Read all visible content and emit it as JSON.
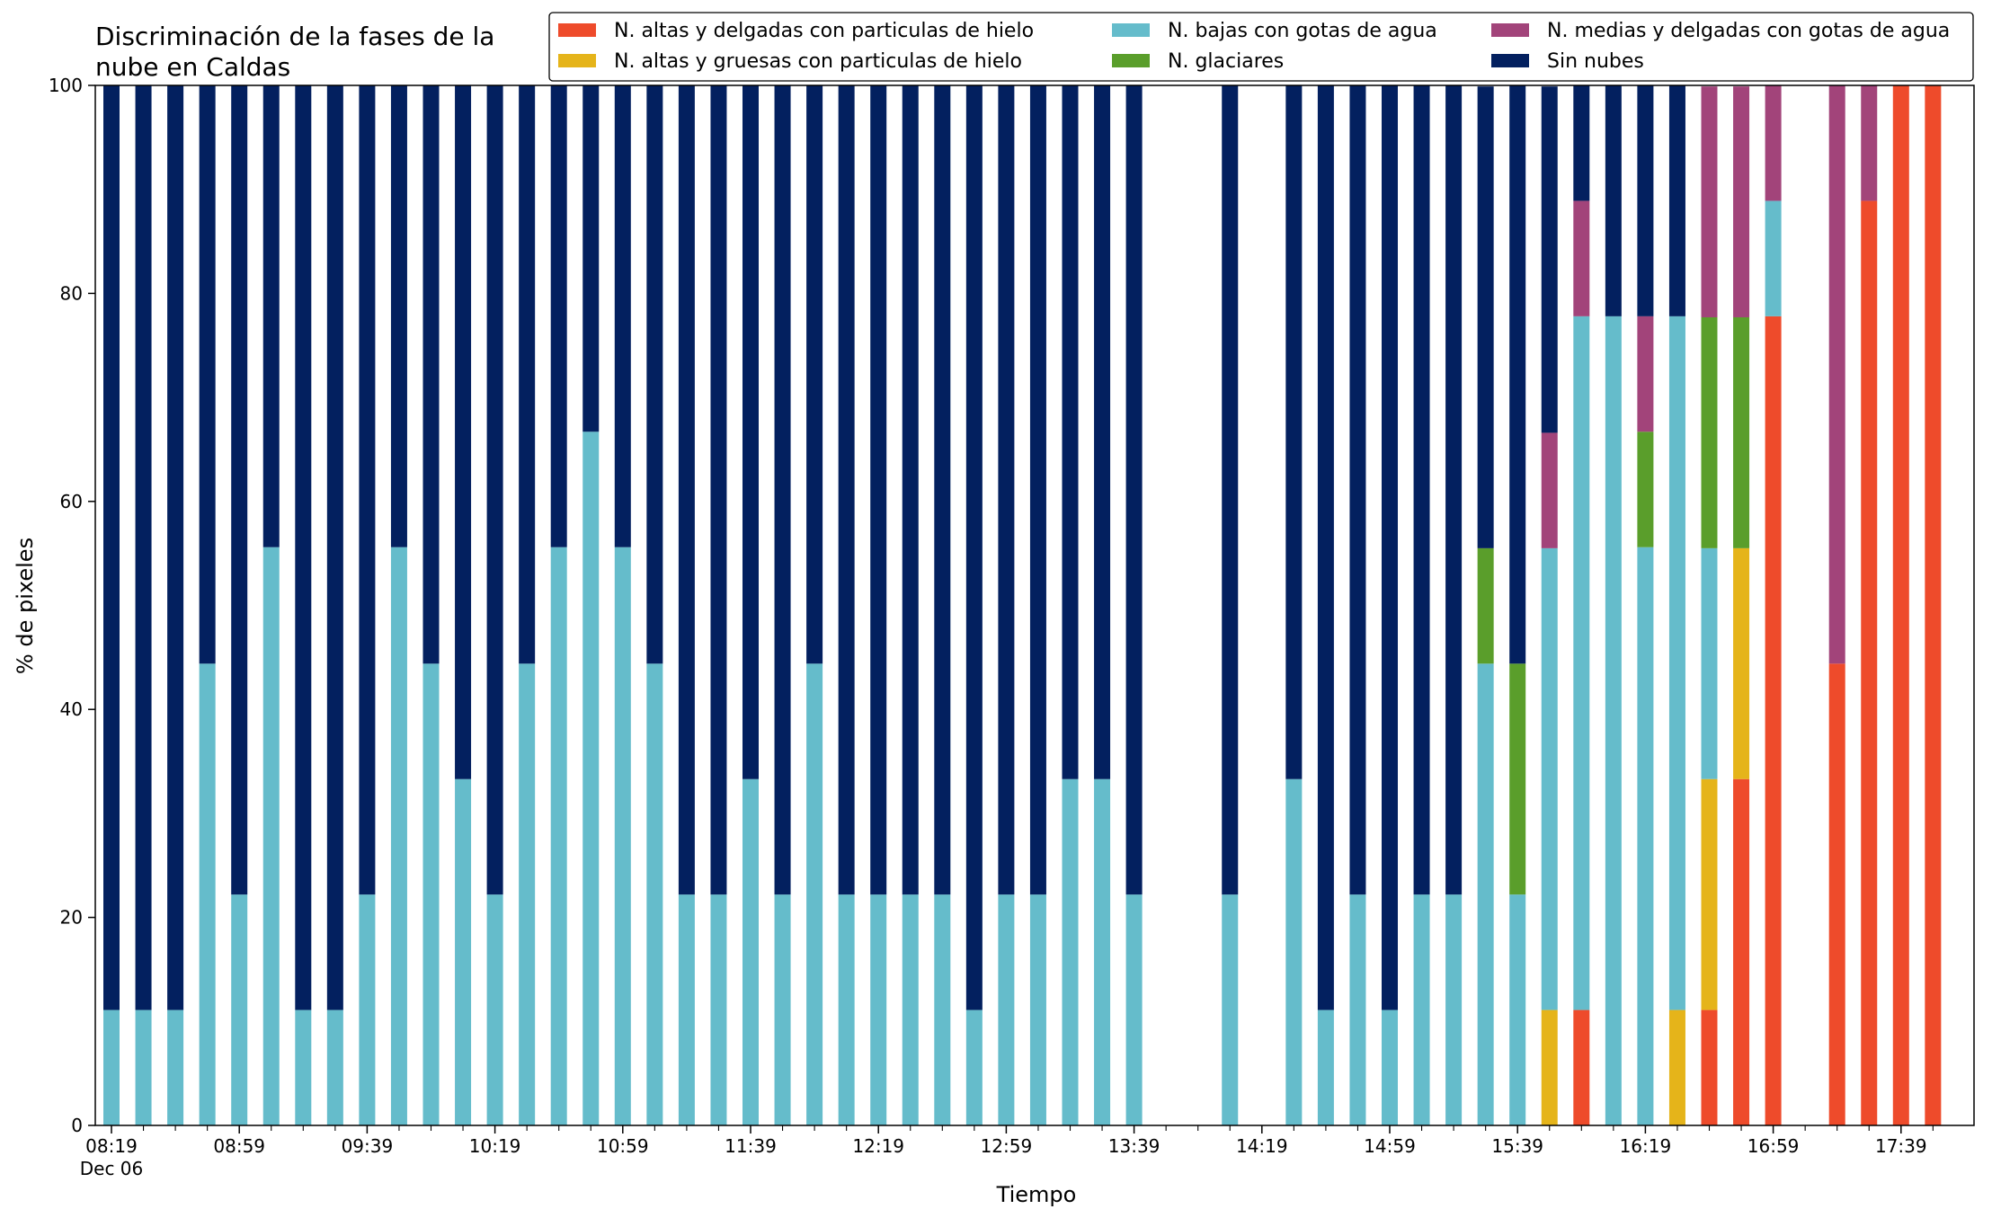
{
  "chart_data": {
    "type": "bar",
    "stacked": true,
    "title": "Discriminación de la fases de la nube en Caldas",
    "title_lines": [
      "Discriminación de la fases de la",
      "nube en Caldas"
    ],
    "xlabel": "Tiempo",
    "ylabel": "% de pixeles",
    "ylim": [
      0,
      100
    ],
    "yticks": [
      0,
      20,
      40,
      60,
      80,
      100
    ],
    "grid": false,
    "legend_position": "top-right",
    "slot_count": 58,
    "x_start": "08:19",
    "x_interval_minutes": 10,
    "xtick_labels": [
      {
        "slot": 0,
        "label": "08:19",
        "sub": "Dec 06"
      },
      {
        "slot": 4,
        "label": "08:59"
      },
      {
        "slot": 8,
        "label": "09:39"
      },
      {
        "slot": 12,
        "label": "10:19"
      },
      {
        "slot": 16,
        "label": "10:59"
      },
      {
        "slot": 20,
        "label": "11:39"
      },
      {
        "slot": 24,
        "label": "12:19"
      },
      {
        "slot": 28,
        "label": "12:59"
      },
      {
        "slot": 32,
        "label": "13:39"
      },
      {
        "slot": 36,
        "label": "14:19"
      },
      {
        "slot": 40,
        "label": "14:59"
      },
      {
        "slot": 44,
        "label": "15:39"
      },
      {
        "slot": 48,
        "label": "16:19"
      },
      {
        "slot": 52,
        "label": "16:59"
      },
      {
        "slot": 56,
        "label": "17:39"
      }
    ],
    "series": [
      {
        "name": "N. altas y delgadas con particulas de hielo",
        "color": "#ee4b2b",
        "values": [
          0,
          0,
          0,
          0,
          0,
          0,
          0,
          0,
          0,
          0,
          0,
          0,
          0,
          0,
          0,
          0,
          0,
          0,
          0,
          0,
          0,
          0,
          0,
          0,
          0,
          0,
          0,
          0,
          0,
          0,
          0,
          0,
          0,
          null,
          null,
          0,
          null,
          0,
          0,
          0,
          0,
          0,
          0,
          0,
          0,
          0,
          11.1,
          0,
          0,
          0,
          11.1,
          33.3,
          77.8,
          null,
          44.4,
          88.9,
          100,
          100
        ]
      },
      {
        "name": "N. altas y gruesas con particulas de hielo",
        "color": "#e5b41a",
        "values": [
          0,
          0,
          0,
          0,
          0,
          0,
          0,
          0,
          0,
          0,
          0,
          0,
          0,
          0,
          0,
          0,
          0,
          0,
          0,
          0,
          0,
          0,
          0,
          0,
          0,
          0,
          0,
          0,
          0,
          0,
          0,
          0,
          0,
          null,
          null,
          0,
          null,
          0,
          0,
          0,
          0,
          0,
          0,
          0,
          0,
          11.1,
          0,
          0,
          0,
          11.1,
          22.2,
          22.2,
          0,
          null,
          0,
          0,
          0,
          0
        ]
      },
      {
        "name": "N. bajas con gotas de agua",
        "color": "#65bccb",
        "values": [
          11.1,
          11.1,
          11.1,
          44.4,
          22.2,
          55.6,
          11.1,
          11.1,
          22.2,
          55.6,
          44.4,
          33.3,
          22.2,
          44.4,
          55.6,
          66.7,
          55.6,
          44.4,
          22.2,
          22.2,
          33.3,
          22.2,
          44.4,
          22.2,
          22.2,
          22.2,
          22.2,
          11.1,
          22.2,
          22.2,
          33.3,
          33.3,
          22.2,
          null,
          null,
          22.2,
          null,
          33.3,
          11.1,
          22.2,
          11.1,
          22.2,
          22.2,
          44.4,
          22.2,
          44.4,
          66.7,
          77.8,
          55.6,
          66.7,
          22.2,
          0,
          11.1,
          null,
          0,
          0,
          0,
          0
        ]
      },
      {
        "name": "N. glaciares",
        "color": "#5a9e2b",
        "values": [
          0,
          0,
          0,
          0,
          0,
          0,
          0,
          0,
          0,
          0,
          0,
          0,
          0,
          0,
          0,
          0,
          0,
          0,
          0,
          0,
          0,
          0,
          0,
          0,
          0,
          0,
          0,
          0,
          0,
          0,
          0,
          0,
          0,
          null,
          null,
          0,
          null,
          0,
          0,
          0,
          0,
          0,
          0,
          11.1,
          22.2,
          0,
          0,
          0,
          11.1,
          0,
          22.2,
          22.2,
          0,
          null,
          0,
          0,
          0,
          0
        ]
      },
      {
        "name": "N. medias y delgadas con gotas de agua",
        "color": "#a2447a",
        "values": [
          0,
          0,
          0,
          0,
          0,
          0,
          0,
          0,
          0,
          0,
          0,
          0,
          0,
          0,
          0,
          0,
          0,
          0,
          0,
          0,
          0,
          0,
          0,
          0,
          0,
          0,
          0,
          0,
          0,
          0,
          0,
          0,
          0,
          null,
          null,
          0,
          null,
          0,
          0,
          0,
          0,
          0,
          0,
          0,
          0,
          11.1,
          11.1,
          0,
          11.1,
          0,
          22.2,
          22.2,
          11.1,
          null,
          55.6,
          11.1,
          0,
          0
        ]
      },
      {
        "name": "Sin nubes",
        "color": "#03205f",
        "values": [
          88.9,
          88.9,
          88.9,
          55.6,
          77.8,
          44.4,
          88.9,
          88.9,
          77.8,
          44.4,
          55.6,
          66.7,
          77.8,
          55.6,
          44.4,
          33.3,
          44.4,
          55.6,
          77.8,
          77.8,
          66.7,
          77.8,
          55.6,
          77.8,
          77.8,
          77.8,
          77.8,
          88.9,
          77.8,
          77.8,
          66.7,
          66.7,
          77.8,
          null,
          null,
          77.8,
          null,
          66.7,
          88.9,
          77.8,
          88.9,
          77.8,
          77.8,
          44.4,
          55.6,
          33.3,
          11.1,
          22.2,
          22.2,
          22.2,
          0,
          0,
          0,
          null,
          0,
          0,
          0,
          0
        ]
      }
    ]
  }
}
